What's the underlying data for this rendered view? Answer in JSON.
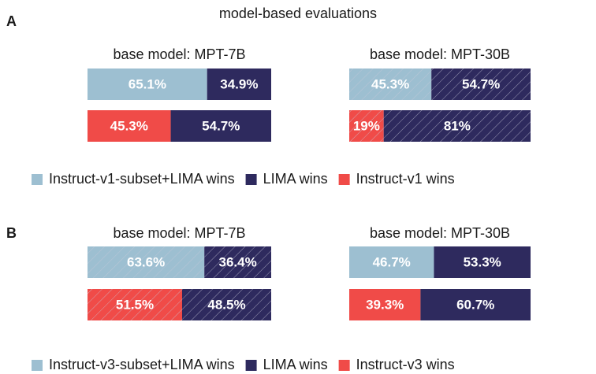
{
  "title": "model-based evaluations",
  "panels": [
    {
      "label": "A",
      "legend": [
        {
          "name": "Instruct-v1-subset+LIMA wins",
          "color": "#9dbfd1"
        },
        {
          "name": "LIMA wins",
          "color": "#2e2a5e"
        },
        {
          "name": "Instruct-v1 wins",
          "color": "#f04b48"
        }
      ]
    },
    {
      "label": "B",
      "legend": [
        {
          "name": "Instruct-v3-subset+LIMA wins",
          "color": "#9dbfd1"
        },
        {
          "name": "LIMA wins",
          "color": "#2e2a5e"
        },
        {
          "name": "Instruct-v3 wins",
          "color": "#f04b48"
        }
      ]
    }
  ],
  "chart_data": [
    {
      "type": "stacked-bar-h",
      "title": "base model: MPT-7B",
      "hatched": false,
      "xlim": [
        0,
        100
      ],
      "bars": [
        {
          "segments": [
            {
              "value": 65.1,
              "value_label": "65.1%",
              "color": "#9dbfd1"
            },
            {
              "value": 34.9,
              "value_label": "34.9%",
              "color": "#2e2a5e"
            }
          ]
        },
        {
          "segments": [
            {
              "value": 45.3,
              "value_label": "45.3%",
              "color": "#f04b48"
            },
            {
              "value": 54.7,
              "value_label": "54.7%",
              "color": "#2e2a5e"
            }
          ]
        }
      ]
    },
    {
      "type": "stacked-bar-h",
      "title": "base model: MPT-30B",
      "hatched": true,
      "xlim": [
        0,
        100
      ],
      "bars": [
        {
          "segments": [
            {
              "value": 45.3,
              "value_label": "45.3%",
              "color": "#9dbfd1"
            },
            {
              "value": 54.7,
              "value_label": "54.7%",
              "color": "#2e2a5e"
            }
          ]
        },
        {
          "segments": [
            {
              "value": 19,
              "value_label": "19%",
              "color": "#f04b48"
            },
            {
              "value": 81,
              "value_label": "81%",
              "color": "#2e2a5e"
            }
          ]
        }
      ]
    },
    {
      "type": "stacked-bar-h",
      "title": "base model: MPT-7B",
      "hatched": true,
      "xlim": [
        0,
        100
      ],
      "bars": [
        {
          "segments": [
            {
              "value": 63.6,
              "value_label": "63.6%",
              "color": "#9dbfd1"
            },
            {
              "value": 36.4,
              "value_label": "36.4%",
              "color": "#2e2a5e"
            }
          ]
        },
        {
          "segments": [
            {
              "value": 51.5,
              "value_label": "51.5%",
              "color": "#f04b48"
            },
            {
              "value": 48.5,
              "value_label": "48.5%",
              "color": "#2e2a5e"
            }
          ]
        }
      ]
    },
    {
      "type": "stacked-bar-h",
      "title": "base model: MPT-30B",
      "hatched": false,
      "xlim": [
        0,
        100
      ],
      "bars": [
        {
          "segments": [
            {
              "value": 46.7,
              "value_label": "46.7%",
              "color": "#9dbfd1"
            },
            {
              "value": 53.3,
              "value_label": "53.3%",
              "color": "#2e2a5e"
            }
          ]
        },
        {
          "segments": [
            {
              "value": 39.3,
              "value_label": "39.3%",
              "color": "#f04b48"
            },
            {
              "value": 60.7,
              "value_label": "60.7%",
              "color": "#2e2a5e"
            }
          ]
        }
      ]
    }
  ]
}
